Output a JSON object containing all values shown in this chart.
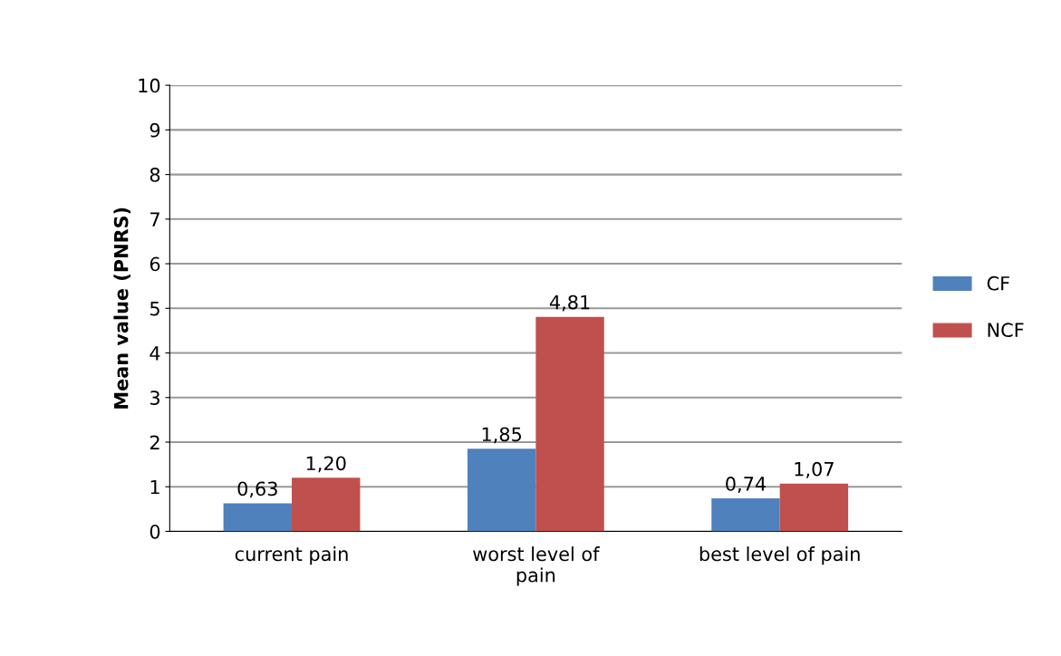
{
  "chart_data": {
    "type": "bar",
    "ylabel": "Mean value (PNRS)",
    "categories": [
      "current pain",
      "worst level of\npain",
      "best level of pain"
    ],
    "series": [
      {
        "name": "CF",
        "color": "#4f81bd",
        "values": [
          0.63,
          1.85,
          0.74
        ],
        "value_labels": [
          "0,63",
          "1,85",
          "0,74"
        ]
      },
      {
        "name": "NCF",
        "color": "#c0504d",
        "values": [
          1.2,
          4.81,
          1.07
        ],
        "value_labels": [
          "1,20",
          "4,81",
          "1,07"
        ]
      }
    ],
    "ylim": [
      0,
      10
    ],
    "yticks": [
      0,
      1,
      2,
      3,
      4,
      5,
      6,
      7,
      8,
      9,
      10
    ],
    "grid": "y",
    "legend": "right"
  }
}
